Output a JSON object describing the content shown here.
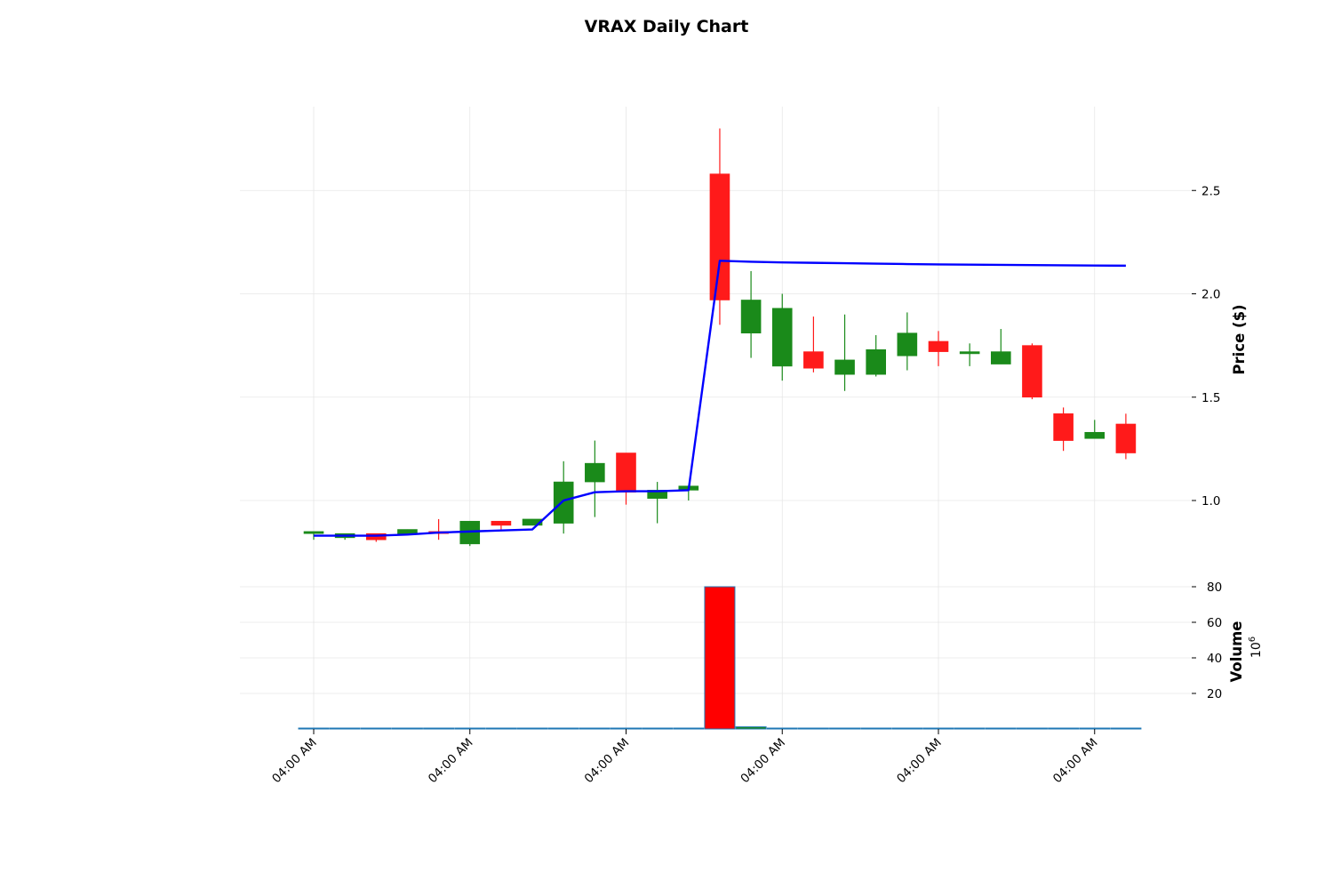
{
  "chart_data": {
    "type": "candlestick",
    "title": "VRAX Daily Chart",
    "ylabel": "Price ($)",
    "ylabel_lower": "Volume",
    "volume_offset_label": "10^6",
    "ylim": [
      0.77,
      2.9
    ],
    "yticks": [
      1.0,
      1.5,
      2.0,
      2.5
    ],
    "volume_ylim": [
      0,
      80
    ],
    "volume_yticks": [
      20,
      40,
      60,
      80
    ],
    "xtick_labels": [
      "04:00 AM",
      "04:00 AM",
      "04:00 AM",
      "04:00 AM",
      "04:00 AM",
      "04:00 AM"
    ],
    "xtick_positions": [
      0,
      5,
      10,
      15,
      20,
      25
    ],
    "grid": true,
    "up_color": "#1a8a1a",
    "down_color": "#ff1a1a",
    "ma_color": "#0000ff",
    "volume_down_color": "#ff0000",
    "volume_up_color": "#1a8a1a",
    "volume_edge_color": "#1f77b4",
    "candles": [
      {
        "open": 0.84,
        "high": 0.85,
        "low": 0.81,
        "close": 0.85
      },
      {
        "open": 0.82,
        "high": 0.84,
        "low": 0.81,
        "close": 0.84
      },
      {
        "open": 0.84,
        "high": 0.84,
        "low": 0.8,
        "close": 0.81
      },
      {
        "open": 0.84,
        "high": 0.86,
        "low": 0.84,
        "close": 0.86
      },
      {
        "open": 0.85,
        "high": 0.91,
        "low": 0.81,
        "close": 0.84
      },
      {
        "open": 0.79,
        "high": 0.9,
        "low": 0.78,
        "close": 0.9
      },
      {
        "open": 0.9,
        "high": 0.9,
        "low": 0.86,
        "close": 0.88
      },
      {
        "open": 0.88,
        "high": 0.91,
        "low": 0.88,
        "close": 0.91
      },
      {
        "open": 0.89,
        "high": 1.19,
        "low": 0.84,
        "close": 1.09
      },
      {
        "open": 1.09,
        "high": 1.29,
        "low": 0.92,
        "close": 1.18
      },
      {
        "open": 1.23,
        "high": 1.23,
        "low": 0.98,
        "close": 1.04
      },
      {
        "open": 1.01,
        "high": 1.09,
        "low": 0.89,
        "close": 1.05
      },
      {
        "open": 1.05,
        "high": 1.06,
        "low": 1.0,
        "close": 1.07
      },
      {
        "open": 2.58,
        "high": 2.8,
        "low": 1.85,
        "close": 1.97
      },
      {
        "open": 1.81,
        "high": 2.11,
        "low": 1.69,
        "close": 1.97
      },
      {
        "open": 1.65,
        "high": 2.0,
        "low": 1.58,
        "close": 1.93
      },
      {
        "open": 1.72,
        "high": 1.89,
        "low": 1.62,
        "close": 1.64
      },
      {
        "open": 1.61,
        "high": 1.9,
        "low": 1.53,
        "close": 1.68
      },
      {
        "open": 1.61,
        "high": 1.8,
        "low": 1.6,
        "close": 1.73
      },
      {
        "open": 1.7,
        "high": 1.91,
        "low": 1.63,
        "close": 1.81
      },
      {
        "open": 1.77,
        "high": 1.82,
        "low": 1.65,
        "close": 1.72
      },
      {
        "open": 1.71,
        "high": 1.76,
        "low": 1.65,
        "close": 1.72
      },
      {
        "open": 1.66,
        "high": 1.83,
        "low": 1.66,
        "close": 1.72
      },
      {
        "open": 1.75,
        "high": 1.76,
        "low": 1.49,
        "close": 1.5
      },
      {
        "open": 1.42,
        "high": 1.45,
        "low": 1.24,
        "close": 1.29
      },
      {
        "open": 1.3,
        "high": 1.39,
        "low": 1.3,
        "close": 1.33
      },
      {
        "open": 1.37,
        "high": 1.42,
        "low": 1.2,
        "close": 1.23
      }
    ],
    "moving_average": [
      0.83,
      0.83,
      0.83,
      0.835,
      0.845,
      0.85,
      0.855,
      0.86,
      1.0,
      1.04,
      1.045,
      1.045,
      1.05,
      2.16,
      2.155,
      2.152,
      2.15,
      2.148,
      2.146,
      2.144,
      2.142,
      2.141,
      2.14,
      2.139,
      2.138,
      2.137,
      2.136
    ],
    "volume": [
      0.1,
      0.1,
      0.1,
      0.1,
      0.1,
      0.1,
      0.1,
      0.1,
      0.3,
      0.1,
      0.1,
      0.2,
      0.3,
      80,
      1.2,
      0.4,
      0.1,
      0.1,
      0.1,
      0.1,
      0.1,
      0.1,
      0.1,
      0.1,
      0.1,
      0.1,
      0.1
    ]
  }
}
